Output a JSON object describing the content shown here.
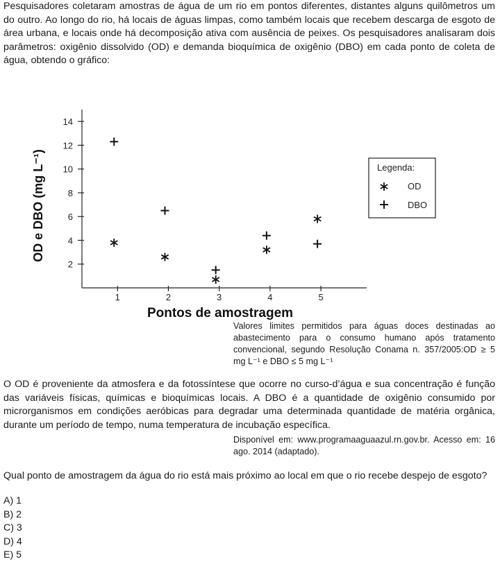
{
  "intro": "Pesquisadores coletaram amostras de água de um rio em pontos diferentes, distantes alguns quilômetros um do outro. Ao longo do rio, há locais de águas limpas, como também locais que recebem descarga de esgoto de área urbana, e locais onde há decomposição ativa com ausência de peixes. Os pesquisadores analisaram dois parâmetros: oxigênio dissolvido (OD) e demanda bioquímica de oxigênio (DBO) em cada ponto de coleta de água, obtendo o gráfico:",
  "chart_data": {
    "type": "scatter",
    "title": "",
    "xlabel": "Pontos de amostragem",
    "ylabel": "OD e DBO (mg L⁻¹)",
    "xlim": [
      0.3,
      5.9
    ],
    "ylim": [
      0,
      15
    ],
    "x_ticks": [
      1,
      2,
      3,
      4,
      5
    ],
    "y_ticks": [
      2,
      4,
      6,
      8,
      10,
      12,
      14
    ],
    "legend_title": "Legenda:",
    "legend_position": "right",
    "series": [
      {
        "name": "OD",
        "marker": "asterisk",
        "x": [
          1,
          2,
          3,
          4,
          5
        ],
        "y": [
          3.8,
          2.6,
          0.7,
          3.2,
          5.8
        ]
      },
      {
        "name": "DBO",
        "marker": "plus",
        "x": [
          1,
          2,
          3,
          4,
          5
        ],
        "y": [
          12.3,
          6.5,
          1.5,
          4.4,
          3.7
        ]
      }
    ]
  },
  "limits_note": "Valores limites permitidos para águas doces destinadas ao abastecimento para o consumo humano após tratamento convencional, segundo Resolução Conama n. 357/2005:OD ≥ 5 mg L⁻¹ e DBO ≤ 5 mg L⁻¹",
  "para2": "O OD é proveniente da atmosfera e da fotossíntese que ocorre no curso-d’água e sua concentração é função das variáveis físicas, químicas e bioquímicas locais. A DBO é a quantidade de oxigênio consumido por microrganismos em condições aeróbicas para degradar uma determinada quantidade de matéria orgânica, durante um período de tempo, numa temperatura de incubação específica.",
  "source": "Disponível em: www.programaaguaazul.rn.gov.br. Acesso em: 16 ago. 2014 (adaptado).",
  "question": "Qual ponto de amostragem da água do rio está mais próximo ao local em que o rio recebe despejo de esgoto?",
  "options": [
    "A) 1",
    "B) 2",
    "C) 3",
    "D) 4",
    "E) 5"
  ]
}
